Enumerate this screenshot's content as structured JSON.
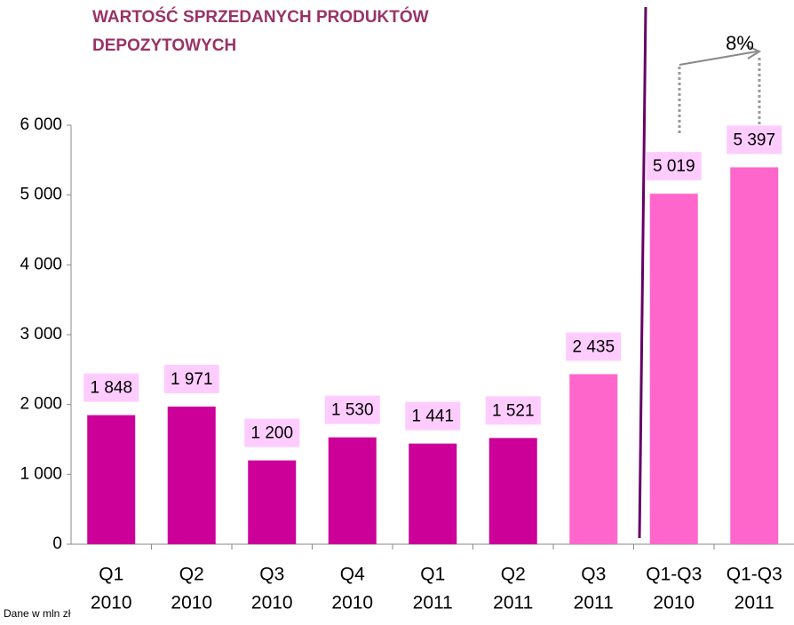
{
  "chart_data": {
    "type": "bar",
    "title": [
      "WARTOŚĆ SPRZEDANYCH PRODUKTÓW",
      "DEPOZYTOWYCH"
    ],
    "categories": [
      [
        "Q1",
        "2010"
      ],
      [
        "Q2",
        "2010"
      ],
      [
        "Q3",
        "2010"
      ],
      [
        "Q4",
        "2010"
      ],
      [
        "Q1",
        "2011"
      ],
      [
        "Q2",
        "2011"
      ],
      [
        "Q3",
        "2011"
      ],
      [
        "Q1-Q3",
        "2010"
      ],
      [
        "Q1-Q3",
        "2011"
      ]
    ],
    "values": [
      1848,
      1971,
      1200,
      1530,
      1441,
      1521,
      2435,
      5019,
      5397
    ],
    "value_labels": [
      "1 848",
      "1 971",
      "1 200",
      "1 530",
      "1 441",
      "1 521",
      "2 435",
      "5 019",
      "5 397"
    ],
    "colors": [
      "#cc0099",
      "#cc0099",
      "#cc0099",
      "#cc0099",
      "#cc0099",
      "#cc0099",
      "#ff66cc",
      "#ff66cc",
      "#ff66cc"
    ],
    "label_background": "#ffccff",
    "ylim": [
      0,
      6000
    ],
    "yticks": [
      0,
      {
        "value": 1000,
        "label": "1 000"
      },
      {
        "value": 2000,
        "label": "2 000"
      },
      {
        "value": 3000,
        "label": "3 000"
      },
      {
        "value": 4000,
        "label": "4 000"
      },
      {
        "value": 5000,
        "label": "5 000"
      },
      {
        "value": 6000,
        "label": "6 000"
      }
    ],
    "annotation": "8%",
    "footnote": "Dane w mln zł"
  }
}
